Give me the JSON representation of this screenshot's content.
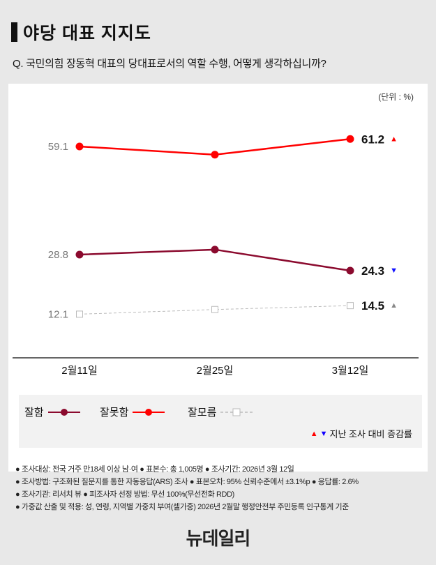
{
  "header": {
    "title": "야당 대표 지지도",
    "question": "Q. 국민의힘 장동혁 대표의 당대표로서의 역할 수행, 어떻게 생각하십니까?"
  },
  "chart_data": {
    "type": "line",
    "unit_label": "(단위 : %)",
    "categories": [
      "2월11일",
      "2월25일",
      "3월12일"
    ],
    "series": [
      {
        "name": "잘함",
        "values": [
          28.8,
          30.2,
          24.3
        ],
        "color": "#8b0a2e",
        "marker": "circle",
        "dash": false,
        "first_label": "28.8",
        "last_label": "24.3",
        "change": "down",
        "change_color": "#1010ff"
      },
      {
        "name": "잘못함",
        "values": [
          59.1,
          56.8,
          61.2
        ],
        "color": "#ff0000",
        "marker": "circle",
        "dash": false,
        "first_label": "59.1",
        "last_label": "61.2",
        "change": "up",
        "change_color": "#ff0000"
      },
      {
        "name": "잘모름",
        "values": [
          12.1,
          13.4,
          14.5
        ],
        "color": "#bbbbbb",
        "marker": "square",
        "dash": true,
        "first_label": "12.1",
        "last_label": "14.5",
        "change": "up",
        "change_color": "#888888"
      }
    ],
    "legend_placement": "bottom",
    "change_note": "지난 조사 대비 증감률",
    "grid": false
  },
  "footer": {
    "lines": [
      "● 조사대상: 전국 거주 만18세 이상 남·여 ● 표본수: 총 1,005명 ● 조사기간: 2026년 3월 12일",
      "● 조사방법: 구조화된 질문지를 통한 자동응답(ARS) 조사 ● 표본오차: 95% 신뢰수준에서 ±3.1%p ● 응답률: 2.6%",
      "● 조사기관: 리서치 뷰 ● 피조사자 선정 방법: 무선 100%(무선전화 RDD)",
      "● 가중값 산출 및 적용: 성, 연령, 지역별 가중치 부여(셀가중) 2026년 2월말 행정안전부 주민등록 인구통계 기준"
    ],
    "logo": "뉴데일리"
  }
}
